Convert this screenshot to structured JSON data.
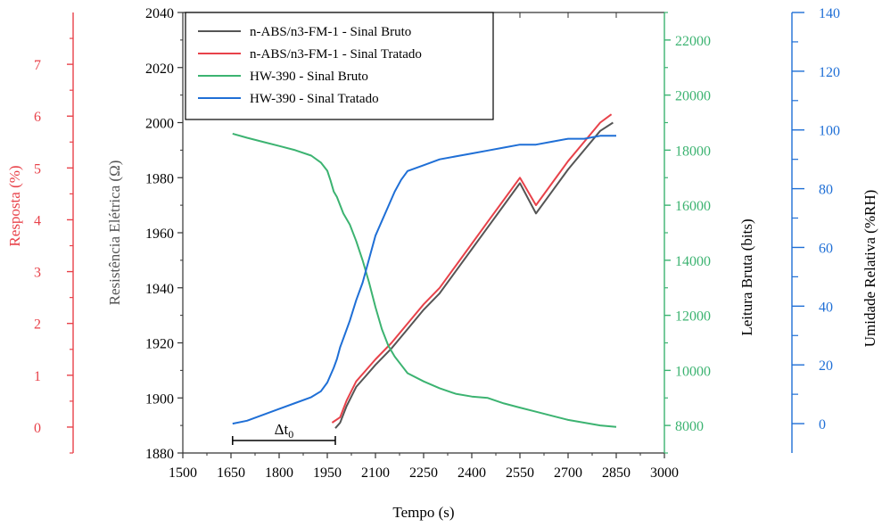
{
  "chart_data": {
    "type": "line",
    "title": "",
    "xlabel": "Tempo (s)",
    "xlim": [
      1500,
      3000
    ],
    "xticks": [
      "1500",
      "1650",
      "1800",
      "1950",
      "2100",
      "2250",
      "2400",
      "2550",
      "2700",
      "2850",
      "3000"
    ],
    "axes": {
      "resistance": {
        "label": "Resistência Elétrica (Ω)",
        "lim": [
          1880,
          2040
        ],
        "ticks": [
          "1880",
          "1900",
          "1920",
          "1940",
          "1960",
          "1980",
          "2000",
          "2020",
          "2040"
        ],
        "color": "#555555"
      },
      "response": {
        "label": "Resposta (%)",
        "lim": [
          -0.5,
          8.0
        ],
        "ticks": [
          "0",
          "1",
          "2",
          "3",
          "4",
          "5",
          "6",
          "7"
        ],
        "color": "#e8424a"
      },
      "raw": {
        "label": "Leitura Bruta (bits)",
        "lim": [
          7000,
          23000
        ],
        "ticks": [
          "8000",
          "10000",
          "12000",
          "14000",
          "16000",
          "18000",
          "20000",
          "22000"
        ],
        "color": "#3cb371"
      },
      "humidity": {
        "label": "Umidade Relativa (%RH)",
        "lim": [
          -10,
          140
        ],
        "ticks": [
          "0",
          "20",
          "40",
          "60",
          "80",
          "100",
          "120",
          "140"
        ],
        "color": "#1f6fd6"
      }
    },
    "annotation": {
      "text": "Δt",
      "subscript": "0",
      "x_start": 1655,
      "x_end": 1975
    },
    "legend_position": "top-left",
    "series": [
      {
        "name": "n-ABS/n3-FM-1 - Sinal Bruto",
        "axis": "resistance",
        "color": "#555555",
        "x": [
          1975,
          1990,
          2010,
          2040,
          2070,
          2100,
          2150,
          2200,
          2250,
          2300,
          2350,
          2400,
          2450,
          2500,
          2550,
          2600,
          2650,
          2700,
          2750,
          2800,
          2840
        ],
        "y": [
          1889,
          1891,
          1897,
          1904,
          1908,
          1912,
          1918,
          1925,
          1932,
          1938,
          1946,
          1954,
          1962,
          1970,
          1978,
          1967,
          1975,
          1983,
          1990,
          1997,
          2000
        ]
      },
      {
        "name": "n-ABS/n3-FM-1 - Sinal Tratado",
        "axis": "resistance",
        "color": "#e8424a",
        "x": [
          1965,
          1990,
          2010,
          2040,
          2070,
          2100,
          2150,
          2200,
          2250,
          2300,
          2350,
          2400,
          2450,
          2500,
          2550,
          2600,
          2650,
          2700,
          2750,
          2800,
          2835
        ],
        "y": [
          1891,
          1893,
          1899,
          1906,
          1910,
          1914,
          1920,
          1927,
          1934,
          1940,
          1948,
          1956,
          1964,
          1972,
          1980,
          1970,
          1978,
          1986,
          1993,
          2000,
          2003
        ]
      },
      {
        "name": "HW-390 - Sinal Bruto",
        "axis": "raw",
        "color": "#3cb371",
        "x": [
          1655,
          1700,
          1750,
          1800,
          1850,
          1900,
          1930,
          1950,
          1960,
          1970,
          1980,
          1990,
          2000,
          2020,
          2040,
          2060,
          2080,
          2100,
          2120,
          2140,
          2160,
          2180,
          2200,
          2250,
          2300,
          2350,
          2400,
          2450,
          2500,
          2550,
          2600,
          2650,
          2700,
          2750,
          2800,
          2850
        ],
        "y": [
          18600,
          18450,
          18300,
          18150,
          18000,
          17800,
          17550,
          17250,
          16900,
          16500,
          16300,
          16000,
          15700,
          15300,
          14700,
          14000,
          13200,
          12300,
          11500,
          10900,
          10500,
          10200,
          9900,
          9600,
          9350,
          9150,
          9050,
          9000,
          8800,
          8650,
          8500,
          8350,
          8200,
          8100,
          8000,
          7950
        ]
      },
      {
        "name": "HW-390 - Sinal Tratado",
        "axis": "humidity",
        "color": "#1f6fd6",
        "x": [
          1655,
          1700,
          1750,
          1800,
          1850,
          1900,
          1930,
          1950,
          1970,
          1980,
          1990,
          2000,
          2020,
          2040,
          2060,
          2080,
          2100,
          2120,
          2140,
          2160,
          2180,
          2200,
          2250,
          2300,
          2350,
          2400,
          2450,
          2500,
          2550,
          2600,
          2650,
          2700,
          2750,
          2800,
          2850
        ],
        "y": [
          0,
          1,
          3,
          5,
          7,
          9,
          11,
          14,
          19,
          22,
          26,
          29,
          35,
          42,
          48,
          56,
          64,
          69,
          74,
          79,
          83,
          86,
          88,
          90,
          91,
          92,
          93,
          94,
          95,
          95,
          96,
          97,
          97,
          98,
          98
        ]
      }
    ]
  }
}
